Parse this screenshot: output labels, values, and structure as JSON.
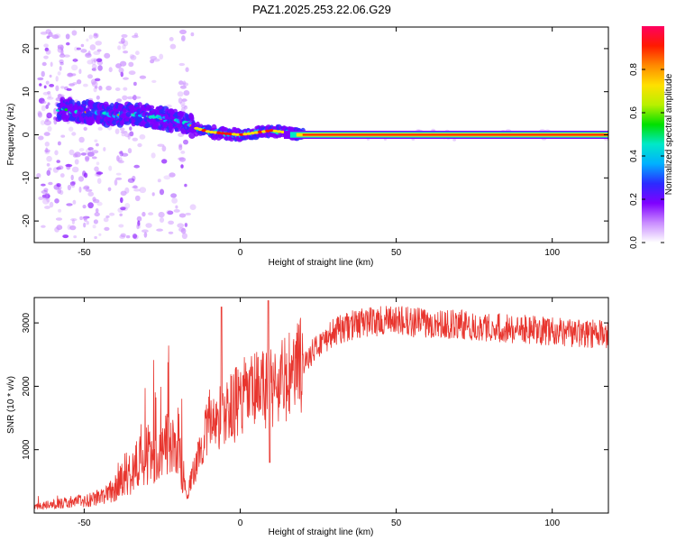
{
  "title": "PAZ1.2025.253.22.06.G29",
  "chart_data": [
    {
      "type": "heatmap",
      "xlabel": "Height of straight line (km)",
      "ylabel": "Frequency (Hz)",
      "xlim": [
        -66,
        118
      ],
      "ylim": [
        -25,
        25
      ],
      "xticks": [
        -50,
        0,
        50,
        100
      ],
      "yticks": [
        20,
        10,
        0,
        -10,
        -20
      ],
      "colorbar": {
        "label": "Normalized spectral amplitude",
        "range": [
          0,
          1
        ],
        "ticks": [
          0.0,
          0.2,
          0.4,
          0.6,
          0.8
        ],
        "colors": [
          "#ffffff",
          "#c98cff",
          "#7f00ff",
          "#2b2bff",
          "#00b0ff",
          "#00e8c8",
          "#00e000",
          "#b8f000",
          "#ffe000",
          "#ff8a00",
          "#ff1a00",
          "#ff0060"
        ]
      },
      "ridge": {
        "x": [
          -58,
          -52,
          -46,
          -40,
          -34,
          -28,
          -22,
          -18,
          -14,
          -10,
          -5,
          0,
          5,
          10,
          15,
          20,
          30,
          50,
          80,
          100,
          118
        ],
        "freq": [
          6,
          5.5,
          5,
          4.5,
          5,
          4,
          3.5,
          3,
          1.5,
          0.7,
          0.3,
          0,
          0.5,
          1,
          0.5,
          0,
          0,
          0,
          0,
          0,
          0
        ]
      }
    },
    {
      "type": "line",
      "xlabel": "Height of straight line (km)",
      "ylabel": "SNR (10 * v/v)",
      "xlim": [
        -66,
        118
      ],
      "ylim": [
        0,
        3400
      ],
      "xticks": [
        -50,
        0,
        50,
        100
      ],
      "yticks": [
        1000,
        2000,
        3000
      ],
      "color": "#e8352e",
      "envelope": {
        "x": [
          -66,
          -50,
          -45,
          -40,
          -30,
          -20,
          -17,
          -10,
          -5,
          0,
          5,
          10,
          15,
          20,
          25,
          30,
          35,
          40,
          50,
          60,
          70,
          80,
          90,
          100,
          110,
          118
        ],
        "y": [
          100,
          200,
          250,
          400,
          900,
          1100,
          300,
          1450,
          1550,
          1800,
          1900,
          2000,
          2100,
          2350,
          2650,
          2850,
          2950,
          3020,
          3030,
          3000,
          2970,
          2940,
          2900,
          2860,
          2830,
          2820
        ]
      },
      "spikes": [
        {
          "x": -6,
          "y": 3250
        },
        {
          "x": 9,
          "y": 3350
        },
        {
          "x": 9.5,
          "y": 800
        }
      ]
    }
  ]
}
